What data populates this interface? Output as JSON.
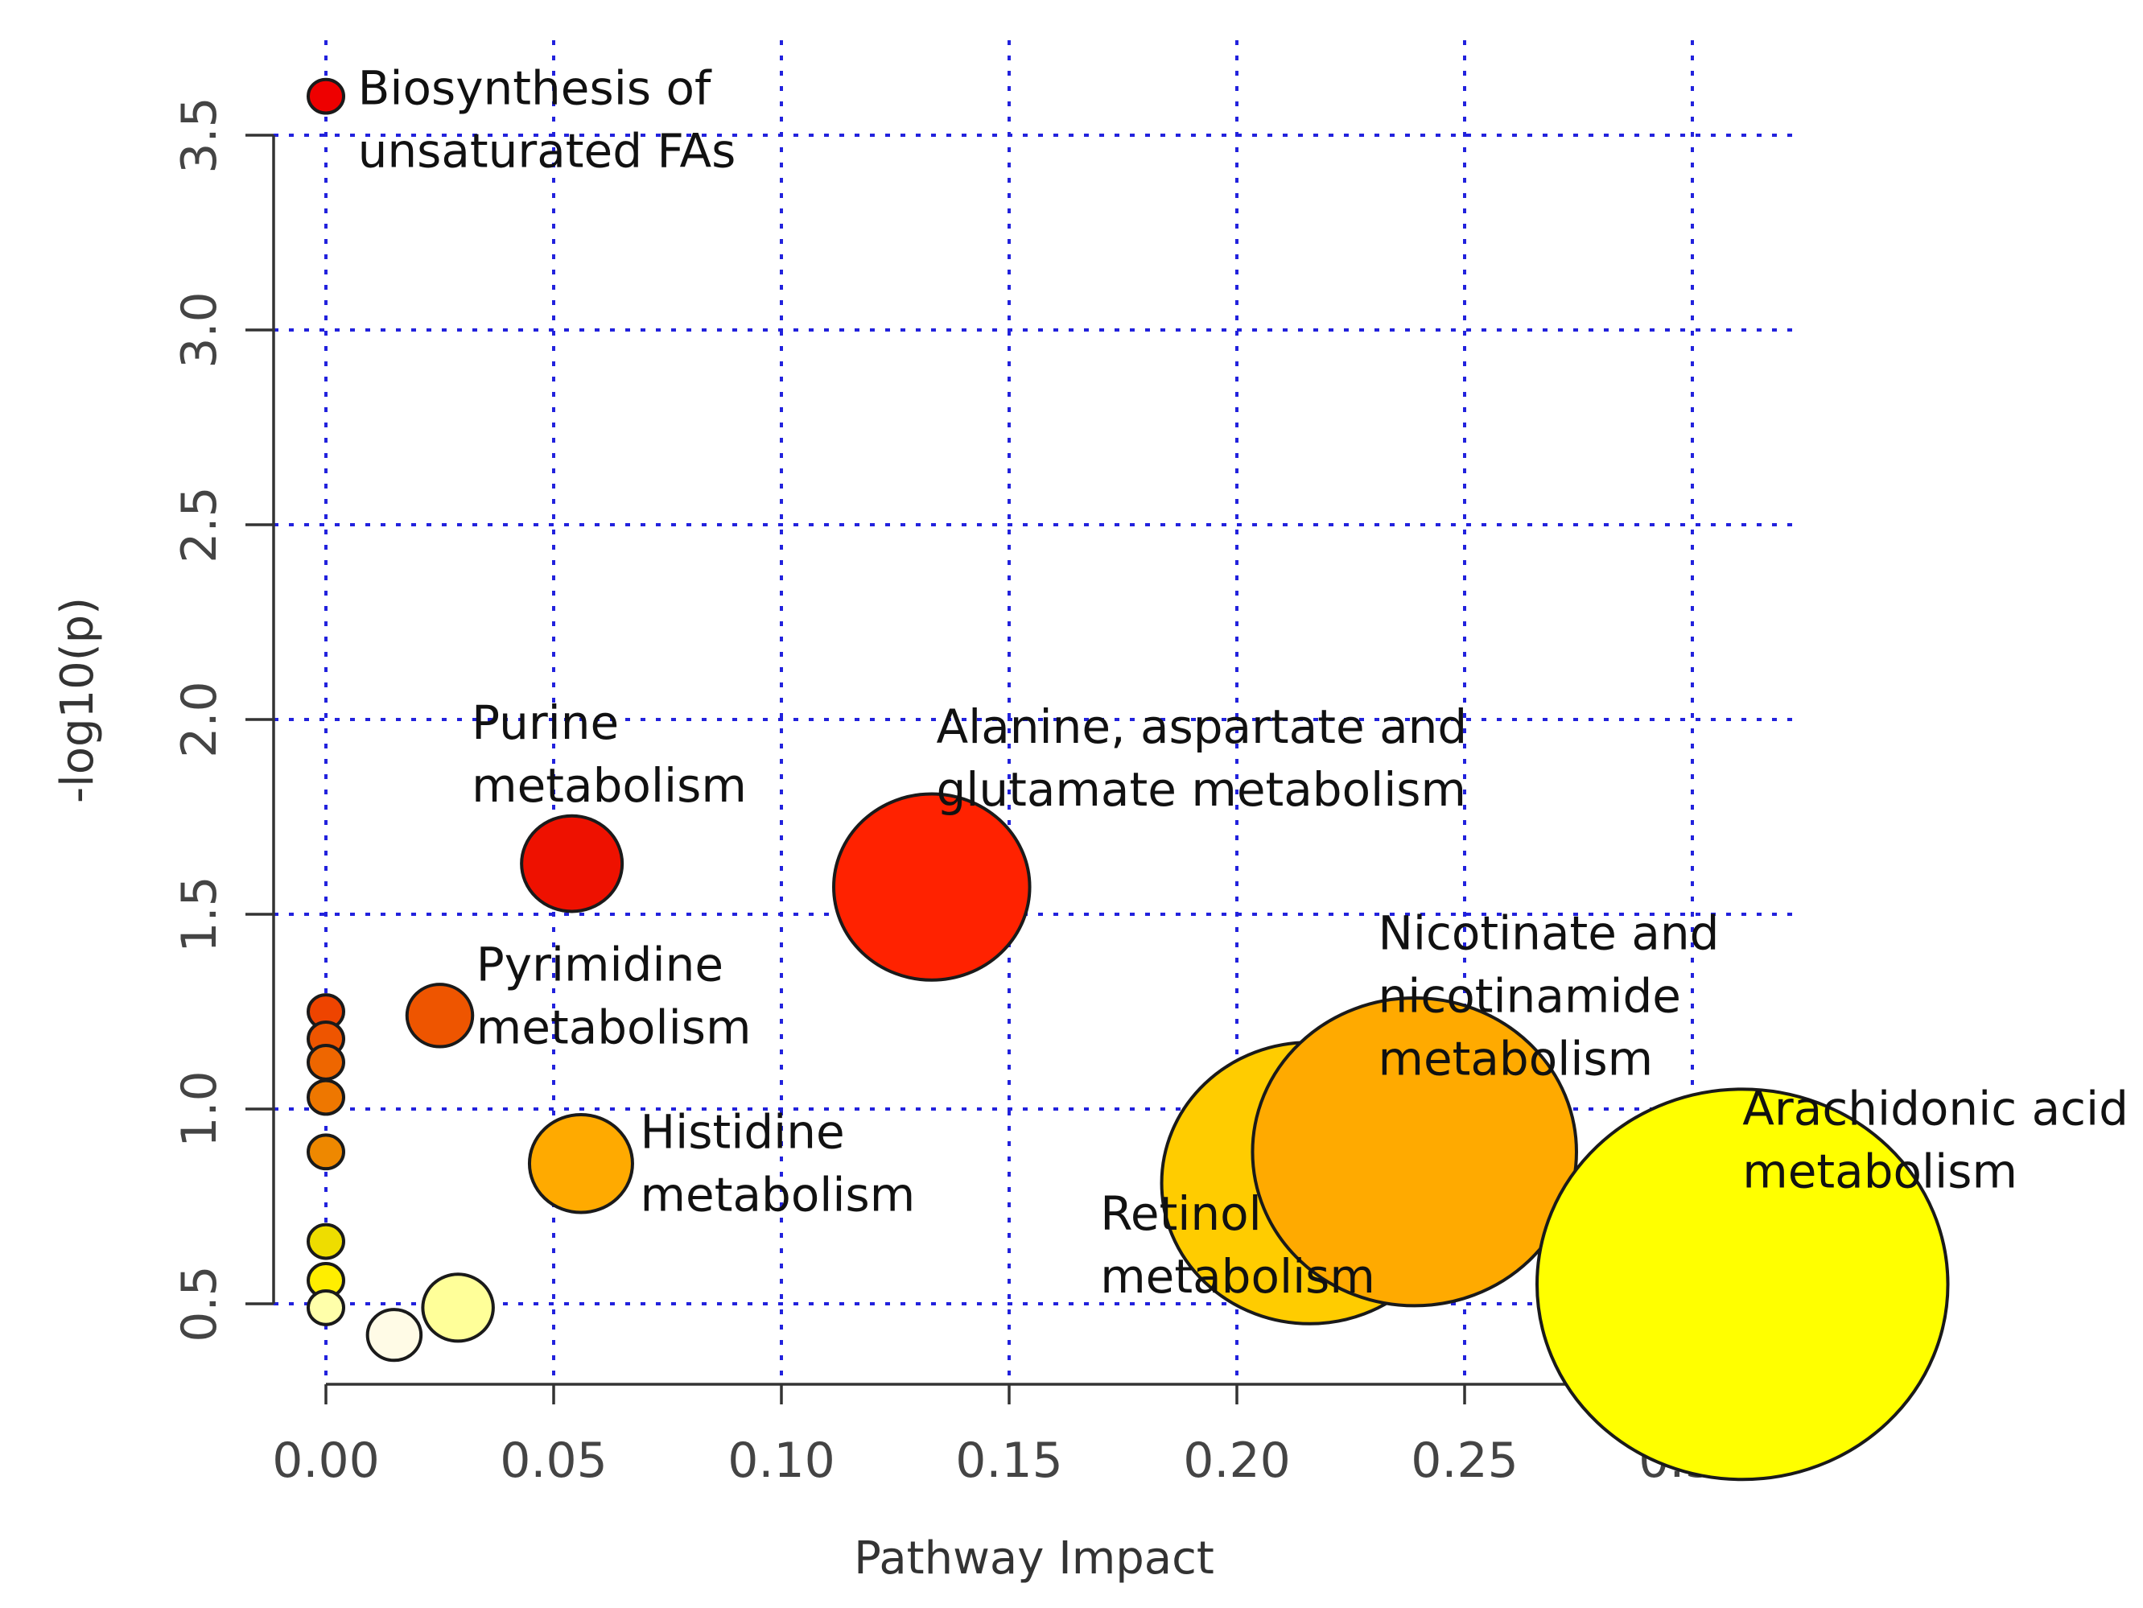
{
  "chart_data": {
    "type": "scatter",
    "title": "",
    "xlabel": "Pathway Impact",
    "ylabel": "-log10(p)",
    "xlim": [
      -0.007,
      0.325
    ],
    "ylim": [
      0.3,
      3.7
    ],
    "x_ticks": [
      "0.00",
      "0.05",
      "0.10",
      "0.15",
      "0.20",
      "0.25",
      "0.30"
    ],
    "y_ticks": [
      "0.5",
      "1.0",
      "1.5",
      "2.0",
      "2.5",
      "3.0",
      "3.5"
    ],
    "grid": true,
    "points": [
      {
        "x": 0.0,
        "y": 3.6,
        "impact": 0.0,
        "color": "#ee0000"
      },
      {
        "x": 0.054,
        "y": 1.63,
        "impact": 0.054,
        "color": "#ee1100"
      },
      {
        "x": 0.133,
        "y": 1.57,
        "impact": 0.133,
        "color": "#ff2200"
      },
      {
        "x": 0.025,
        "y": 1.24,
        "impact": 0.025,
        "color": "#ee5500"
      },
      {
        "x": 0.0,
        "y": 1.25,
        "impact": 0.0,
        "color": "#ee4400"
      },
      {
        "x": 0.0,
        "y": 1.18,
        "impact": 0.0,
        "color": "#ee5500"
      },
      {
        "x": 0.0,
        "y": 1.12,
        "impact": 0.0,
        "color": "#ee6600"
      },
      {
        "x": 0.0,
        "y": 1.03,
        "impact": 0.0,
        "color": "#ee7700"
      },
      {
        "x": 0.0,
        "y": 0.89,
        "impact": 0.0,
        "color": "#ee8800"
      },
      {
        "x": 0.056,
        "y": 0.86,
        "impact": 0.056,
        "color": "#ffaa00"
      },
      {
        "x": 0.0,
        "y": 0.66,
        "impact": 0.0,
        "color": "#eedd00"
      },
      {
        "x": 0.0,
        "y": 0.56,
        "impact": 0.0,
        "color": "#ffee00"
      },
      {
        "x": 0.0,
        "y": 0.49,
        "impact": 0.0,
        "color": "#ffffaa"
      },
      {
        "x": 0.015,
        "y": 0.42,
        "impact": 0.015,
        "color": "#fffbe6"
      },
      {
        "x": 0.029,
        "y": 0.49,
        "impact": 0.029,
        "color": "#ffff99"
      },
      {
        "x": 0.216,
        "y": 0.81,
        "impact": 0.216,
        "color": "#ffcc00"
      },
      {
        "x": 0.239,
        "y": 0.89,
        "impact": 0.239,
        "color": "#ffaa00"
      },
      {
        "x": 0.311,
        "y": 0.55,
        "impact": 0.311,
        "color": "#ffff00"
      }
    ],
    "annotations": [
      {
        "lines": [
          "Biosynthesis of",
          "unsaturated FAs"
        ],
        "x": 0.007,
        "y": 3.58
      },
      {
        "lines": [
          "Purine",
          "metabolism"
        ],
        "x": 0.032,
        "y": 1.95
      },
      {
        "lines": [
          "Alanine, aspartate and",
          "glutamate metabolism"
        ],
        "x": 0.134,
        "y": 1.94
      },
      {
        "lines": [
          "Pyrimidine",
          "metabolism"
        ],
        "x": 0.033,
        "y": 1.33
      },
      {
        "lines": [
          "Histidine",
          "metabolism"
        ],
        "x": 0.069,
        "y": 0.9
      },
      {
        "lines": [
          "Nicotinate and",
          "nicotinamide",
          "metabolism"
        ],
        "x": 0.231,
        "y": 1.41
      },
      {
        "lines": [
          "Arachidonic acid",
          "metabolism"
        ],
        "x": 0.311,
        "y": 0.96
      },
      {
        "lines": [
          "Retinol",
          "metabolism"
        ],
        "x": 0.17,
        "y": 0.69
      }
    ]
  }
}
